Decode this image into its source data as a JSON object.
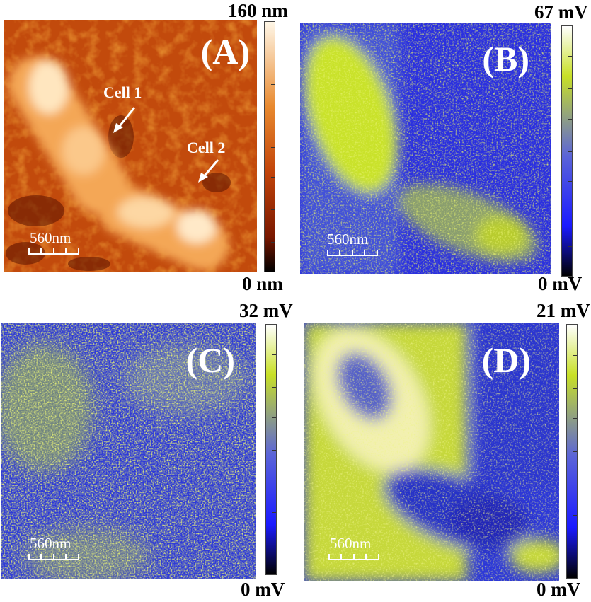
{
  "panels": {
    "a": {
      "label": "(A)",
      "scale_label": "560nm",
      "colorbar_max": "160 nm",
      "colorbar_min": "0 nm",
      "annotations": {
        "cell1": "Cell 1",
        "cell2": "Cell 2"
      },
      "colormap": [
        "#000000",
        "#7a1800",
        "#c2440a",
        "#e8892e",
        "#fff7e8"
      ]
    },
    "b": {
      "label": "(B)",
      "scale_label": "560nm",
      "colorbar_max": "67 mV",
      "colorbar_min": "0 mV",
      "colormap": [
        "#000000",
        "#1a1aff",
        "#5b64d8",
        "#c8e026",
        "#ffffff"
      ]
    },
    "c": {
      "label": "(C)",
      "scale_label": "560nm",
      "colorbar_max": "32 mV",
      "colorbar_min": "0 mV",
      "colormap": [
        "#000000",
        "#1a1aff",
        "#5b64d8",
        "#c8e026",
        "#ffffff"
      ]
    },
    "d": {
      "label": "(D)",
      "scale_label": "560nm",
      "colorbar_max": "21 mV",
      "colorbar_min": "0 mV",
      "colormap": [
        "#000000",
        "#1a1aff",
        "#5b64d8",
        "#c8e026",
        "#ffffff"
      ]
    }
  }
}
